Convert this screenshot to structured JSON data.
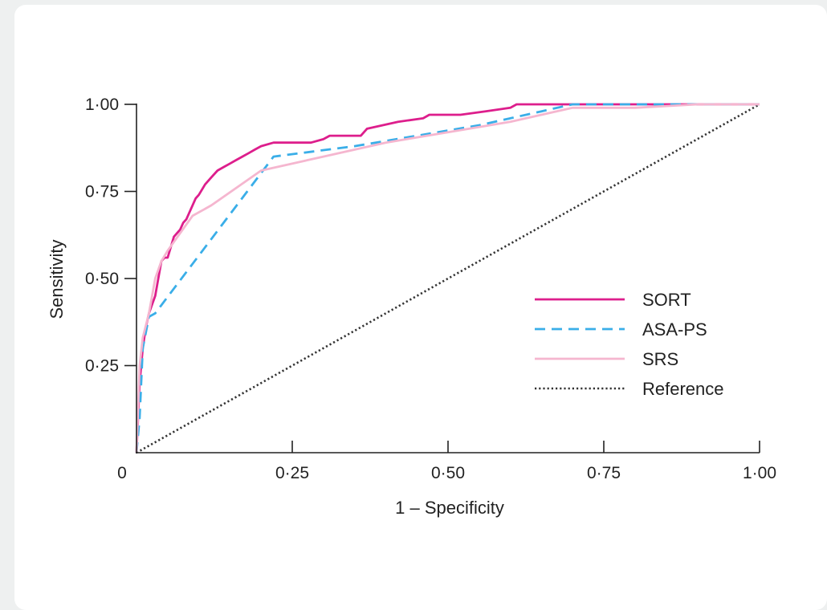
{
  "chart_data": {
    "type": "line",
    "title": "",
    "xlabel": "1 – Specificity",
    "ylabel": "Sensitivity",
    "xlim": [
      0,
      1
    ],
    "ylim": [
      0,
      1
    ],
    "grid": false,
    "legend_position": "lower-right",
    "x_ticks": [
      {
        "value": 0,
        "label": "0"
      },
      {
        "value": 0.25,
        "label": "0·25"
      },
      {
        "value": 0.5,
        "label": "0·50"
      },
      {
        "value": 0.75,
        "label": "0·75"
      },
      {
        "value": 1,
        "label": "1·00"
      }
    ],
    "y_ticks": [
      {
        "value": 0.25,
        "label": "0·25"
      },
      {
        "value": 0.5,
        "label": "0·50"
      },
      {
        "value": 0.75,
        "label": "0·75"
      },
      {
        "value": 1,
        "label": "1·00"
      }
    ],
    "series": [
      {
        "name": "SORT",
        "color": "#dd1e8c",
        "style": "solid",
        "x": [
          0,
          0.005,
          0.01,
          0.015,
          0.02,
          0.03,
          0.04,
          0.045,
          0.05,
          0.06,
          0.065,
          0.07,
          0.075,
          0.08,
          0.09,
          0.095,
          0.1,
          0.11,
          0.12,
          0.13,
          0.14,
          0.15,
          0.16,
          0.17,
          0.18,
          0.19,
          0.2,
          0.22,
          0.24,
          0.28,
          0.3,
          0.31,
          0.36,
          0.37,
          0.42,
          0.46,
          0.47,
          0.52,
          0.56,
          0.6,
          0.61,
          0.65,
          0.7,
          0.8,
          0.9,
          1
        ],
        "y": [
          0,
          0.2,
          0.3,
          0.36,
          0.4,
          0.45,
          0.55,
          0.56,
          0.56,
          0.62,
          0.63,
          0.64,
          0.66,
          0.67,
          0.71,
          0.73,
          0.74,
          0.77,
          0.79,
          0.81,
          0.82,
          0.83,
          0.84,
          0.85,
          0.86,
          0.87,
          0.88,
          0.89,
          0.89,
          0.89,
          0.9,
          0.91,
          0.91,
          0.93,
          0.95,
          0.96,
          0.97,
          0.97,
          0.98,
          0.99,
          1.0,
          1.0,
          1.0,
          1.0,
          1.0,
          1.0
        ]
      },
      {
        "name": "ASA-PS",
        "color": "#3aaee8",
        "style": "dashed",
        "x": [
          0,
          0.005,
          0.01,
          0.02,
          0.03,
          0.22,
          0.35,
          0.45,
          0.55,
          0.65,
          0.7,
          0.8,
          1
        ],
        "y": [
          0,
          0.1,
          0.3,
          0.39,
          0.4,
          0.85,
          0.88,
          0.91,
          0.94,
          0.98,
          1.0,
          1.0,
          1.0
        ]
      },
      {
        "name": "SRS",
        "color": "#f5b6cf",
        "style": "solid",
        "x": [
          0,
          0.005,
          0.01,
          0.02,
          0.03,
          0.04,
          0.05,
          0.07,
          0.09,
          0.12,
          0.2,
          0.3,
          0.4,
          0.5,
          0.6,
          0.7,
          0.8,
          0.9,
          1
        ],
        "y": [
          0,
          0.25,
          0.33,
          0.4,
          0.5,
          0.55,
          0.58,
          0.63,
          0.68,
          0.71,
          0.81,
          0.85,
          0.89,
          0.92,
          0.95,
          0.99,
          0.99,
          1.0,
          1.0
        ]
      },
      {
        "name": "Reference",
        "color": "#333333",
        "style": "dotted",
        "x": [
          0,
          1
        ],
        "y": [
          0,
          1
        ]
      }
    ]
  }
}
